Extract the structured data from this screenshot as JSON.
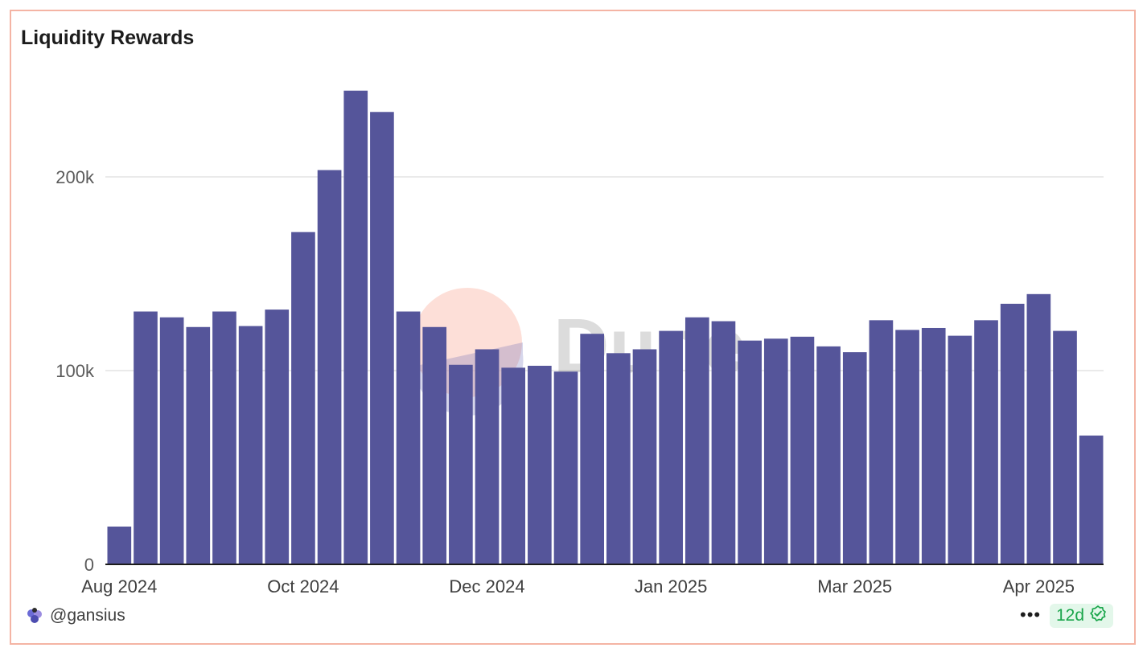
{
  "card": {
    "title": "Liquidity Rewards"
  },
  "watermark": "Dune",
  "footer": {
    "author": "@gansius",
    "more_label": "•••",
    "age_label": "12d",
    "avatar_icon": "avatar-icon",
    "verified_icon": "check-badge-icon"
  },
  "colors": {
    "bar": "#55559a",
    "grid": "#e4e4e4",
    "border": "#f4b4a4",
    "badge_text": "#19a54a"
  },
  "chart_data": {
    "type": "bar",
    "title": "Liquidity Rewards",
    "xlabel": "",
    "ylabel": "",
    "ylim": [
      0,
      240000
    ],
    "y_ticks": [
      {
        "value": 0,
        "label": "0"
      },
      {
        "value": 100000,
        "label": "100k"
      },
      {
        "value": 200000,
        "label": "200k"
      }
    ],
    "x_ticks": [
      {
        "index": 0,
        "label": "Aug 2024"
      },
      {
        "index": 7,
        "label": "Oct 2024"
      },
      {
        "index": 14,
        "label": "Dec 2024"
      },
      {
        "index": 21,
        "label": "Jan 2025"
      },
      {
        "index": 28,
        "label": "Mar 2025"
      },
      {
        "index": 35,
        "label": "Apr 2025"
      }
    ],
    "grid": true,
    "legend": "none",
    "values": [
      19500,
      130500,
      127500,
      122500,
      130500,
      123000,
      131500,
      171500,
      203500,
      244500,
      233500,
      130500,
      122500,
      103000,
      111000,
      101500,
      102500,
      99500,
      119000,
      109000,
      111000,
      120500,
      127500,
      125500,
      115500,
      116500,
      117500,
      112500,
      109500,
      126000,
      121000,
      122000,
      118000,
      126000,
      134500,
      139500,
      120500,
      66500
    ]
  }
}
